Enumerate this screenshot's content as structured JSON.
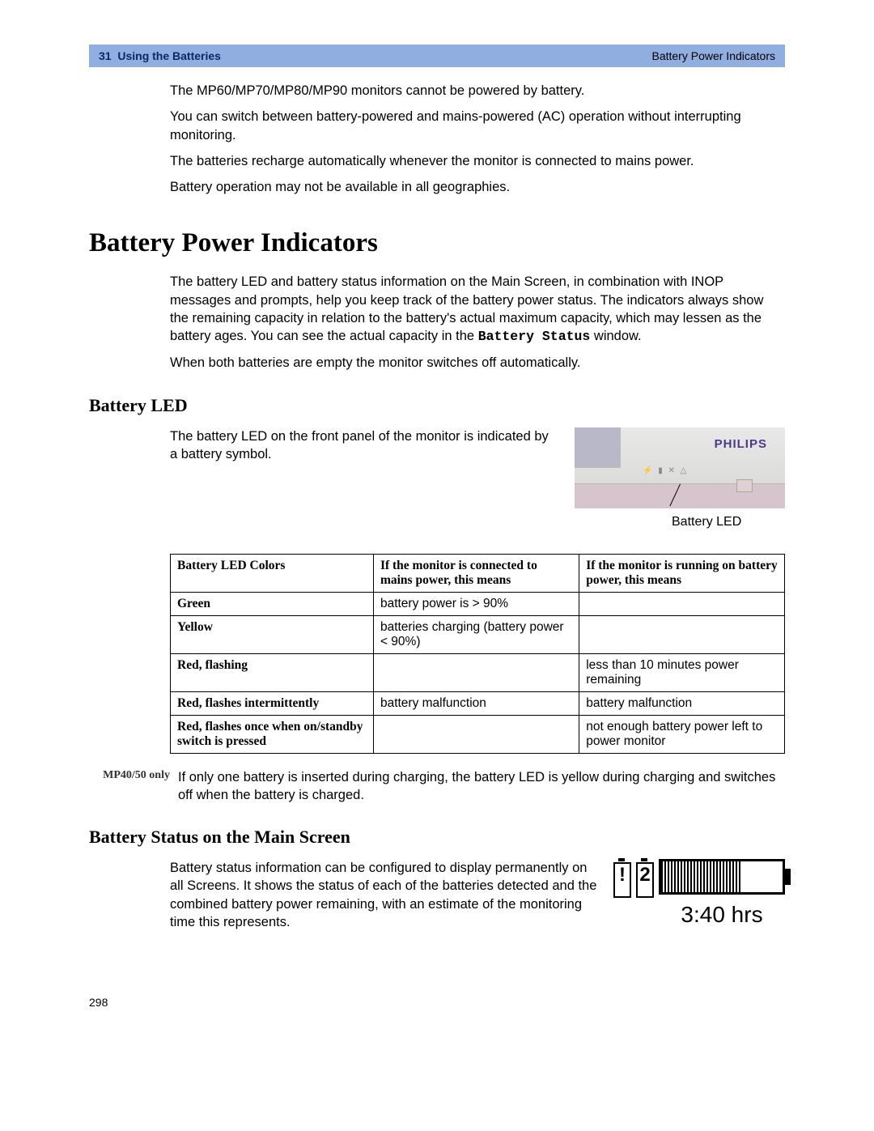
{
  "header": {
    "chapter_num": "31",
    "chapter_title": "Using the Batteries",
    "section_title": "Battery Power Indicators"
  },
  "intro": {
    "p1": "The MP60/MP70/MP80/MP90 monitors cannot be powered by battery.",
    "p2": "You can switch between battery-powered and mains-powered (AC) operation without interrupting monitoring.",
    "p3": "The batteries recharge automatically whenever the monitor is connected to mains power.",
    "p4": "Battery operation may not be available in all geographies."
  },
  "h1": "Battery Power Indicators",
  "bpi": {
    "p1a": "The battery LED and battery status information on the Main Screen, in combination with INOP messages and prompts, help you keep track of the battery power status. The indicators always show the remaining capacity in relation to the battery's actual maximum capacity, which may lessen as the battery ages. You can see the actual capacity in the ",
    "p1_mono": "Battery Status",
    "p1b": " window.",
    "p2": "When both batteries are empty the monitor switches off automatically."
  },
  "h2_led": "Battery LED",
  "led": {
    "text": "The battery LED on the front panel of the monitor is indicated by a battery symbol.",
    "brand": "PHILIPS",
    "caption": "Battery LED"
  },
  "table": {
    "headers": {
      "c1": "Battery LED Colors",
      "c2": "If the monitor is connected to mains power, this means",
      "c3": "If the monitor is running on battery power, this means"
    },
    "rows": [
      {
        "c1": "Green",
        "c2": "battery power is > 90%",
        "c3": ""
      },
      {
        "c1": "Yellow",
        "c2": "batteries charging (battery power < 90%)",
        "c3": ""
      },
      {
        "c1": "Red, flashing",
        "c2": "",
        "c3": "less than 10 minutes power remaining"
      },
      {
        "c1": "Red, flashes intermittently",
        "c2": "battery malfunction",
        "c3": "battery malfunction"
      },
      {
        "c1": "Red, flashes once when on/standby switch is pressed",
        "c2": "",
        "c3": "not enough battery power left to power monitor"
      }
    ]
  },
  "note": {
    "label": "MP40/50 only",
    "text": "If only one battery is inserted during charging, the battery LED is yellow during charging and switches off when the battery is charged."
  },
  "h2_status": "Battery Status on the Main Screen",
  "status": {
    "text": "Battery status information can be configured to display permanently on all Screens. It shows the status of each of the batteries detected and the combined battery power remaining, with an estimate of the monitoring time this represents.",
    "batt1_symbol": "!",
    "batt2_symbol": "2",
    "time": "3:40 hrs"
  },
  "page_number": "298",
  "colors": {
    "header_bg": "#91aee0",
    "header_text_dark": "#0a2a66"
  }
}
